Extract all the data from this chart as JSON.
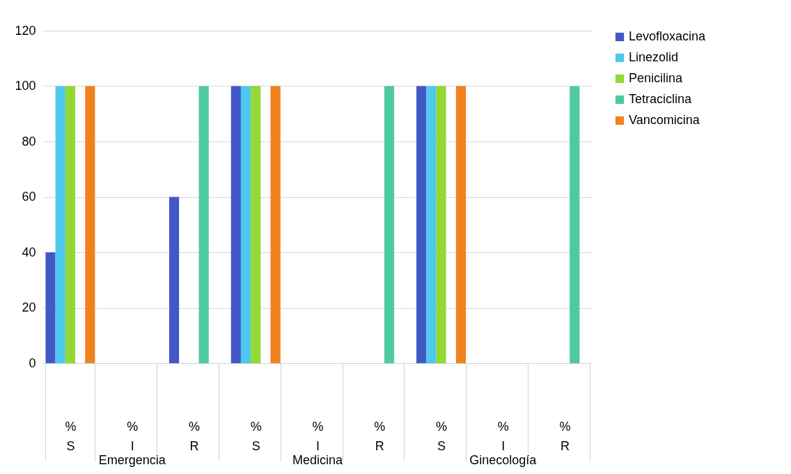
{
  "chart_data": {
    "type": "bar",
    "categories": [
      "% S",
      "% I",
      "% R",
      "% S",
      "% I",
      "% R",
      "% S",
      "% I",
      "% R"
    ],
    "series": [
      {
        "name": "Levofloxacina",
        "color": "#4159c6",
        "values": [
          40,
          0,
          60,
          100,
          0,
          0,
          100,
          0,
          0
        ]
      },
      {
        "name": "Linezolid",
        "color": "#4fc8f0",
        "values": [
          100,
          0,
          0,
          100,
          0,
          0,
          100,
          0,
          0
        ]
      },
      {
        "name": "Penicilina",
        "color": "#92d935",
        "values": [
          100,
          0,
          0,
          100,
          0,
          0,
          100,
          0,
          0
        ]
      },
      {
        "name": "Tetraciclina",
        "color": "#4fc9a4",
        "values": [
          0,
          0,
          100,
          0,
          0,
          100,
          0,
          0,
          100
        ]
      },
      {
        "name": "Vancomicina",
        "color": "#f0821e",
        "values": [
          100,
          0,
          0,
          100,
          0,
          0,
          100,
          0,
          0
        ]
      }
    ],
    "annotations": [
      "Emergencia",
      "Medicina",
      "Ginecología"
    ],
    "ylim": [
      0,
      120
    ],
    "yticks": [
      0,
      20,
      40,
      60,
      80,
      100,
      120
    ],
    "grid": "y",
    "legend": "right"
  }
}
